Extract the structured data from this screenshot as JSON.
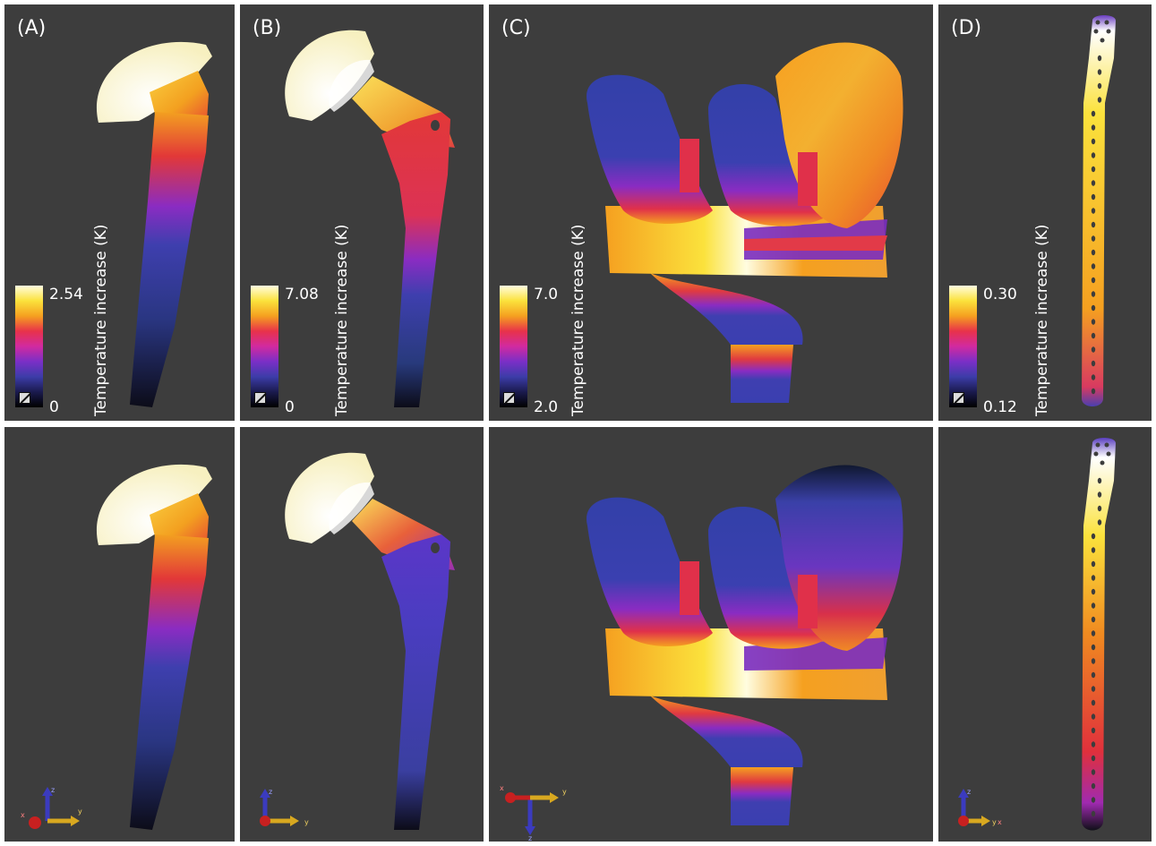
{
  "panels": {
    "A": {
      "label": "(A)"
    },
    "B": {
      "label": "(B)"
    },
    "C": {
      "label": "(C)"
    },
    "D": {
      "label": "(D)"
    }
  },
  "colorbars": {
    "title": "Temperature increase (K)",
    "A": {
      "max": "2.54",
      "min": "0"
    },
    "B": {
      "max": "7.08",
      "min": "0"
    },
    "C": {
      "max": "7.0",
      "min": "2.0"
    },
    "D": {
      "max": "0.30",
      "min": "0.12"
    }
  },
  "axes": {
    "x": "x",
    "y": "y",
    "z": "z"
  },
  "colormap": [
    "#000000",
    "#1a1a4d",
    "#3c3ca8",
    "#7a2fc7",
    "#d12aa0",
    "#e8324a",
    "#f5a020",
    "#fbe23c",
    "#fffde0"
  ]
}
